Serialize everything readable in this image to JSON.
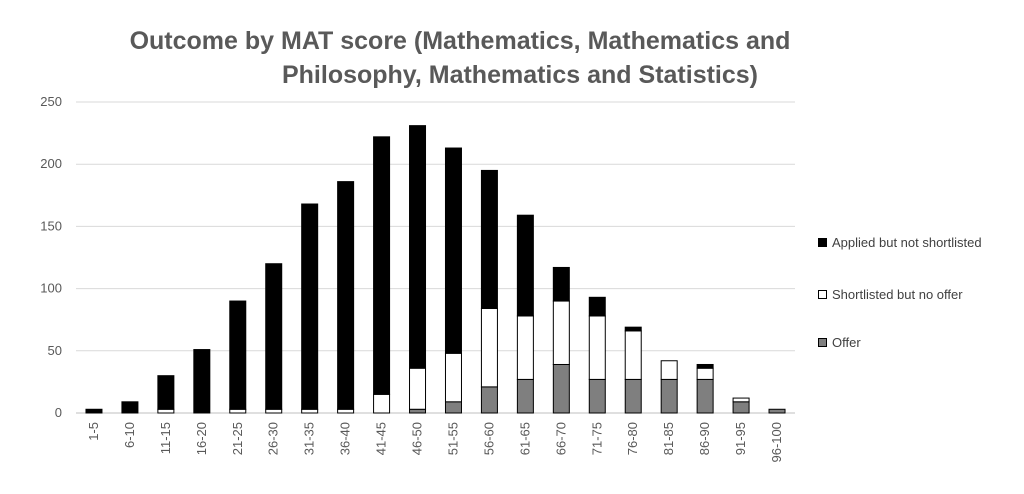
{
  "chart_data": {
    "type": "bar",
    "stacked": true,
    "title_line1": "Outcome by MAT score (Mathematics, Mathematics and",
    "title_line2": "Philosophy, Mathematics and Statistics)",
    "categories": [
      "1-5",
      "6-10",
      "11-15",
      "16-20",
      "21-25",
      "26-30",
      "31-35",
      "36-40",
      "41-45",
      "46-50",
      "51-55",
      "56-60",
      "61-65",
      "66-70",
      "71-75",
      "76-80",
      "81-85",
      "86-90",
      "91-95",
      "96-100"
    ],
    "series": [
      {
        "name": "Offer",
        "color": "#7f7f7f",
        "values": [
          0,
          0,
          0,
          0,
          0,
          0,
          0,
          0,
          0,
          3,
          9,
          21,
          27,
          39,
          27,
          27,
          27,
          27,
          9,
          3
        ]
      },
      {
        "name": "Shortlisted but no offer",
        "color": "#ffffff",
        "values": [
          0,
          0,
          3,
          0,
          3,
          3,
          3,
          3,
          15,
          33,
          39,
          63,
          51,
          51,
          51,
          39,
          15,
          9,
          3,
          0
        ]
      },
      {
        "name": "Applied but not shortlisted",
        "color": "#000000",
        "values": [
          3,
          9,
          27,
          51,
          87,
          117,
          165,
          183,
          207,
          195,
          165,
          111,
          81,
          27,
          15,
          3,
          0,
          3,
          0,
          0
        ]
      }
    ],
    "ylim": [
      0,
      250
    ],
    "yticks": [
      0,
      50,
      100,
      150,
      200,
      250
    ],
    "grid": true,
    "legend_position": "right"
  },
  "legend": {
    "items": [
      {
        "label": "Applied but not shortlisted",
        "color": "#000000"
      },
      {
        "label": "Shortlisted but no offer",
        "color": "#ffffff"
      },
      {
        "label": "Offer",
        "color": "#7f7f7f"
      }
    ]
  }
}
